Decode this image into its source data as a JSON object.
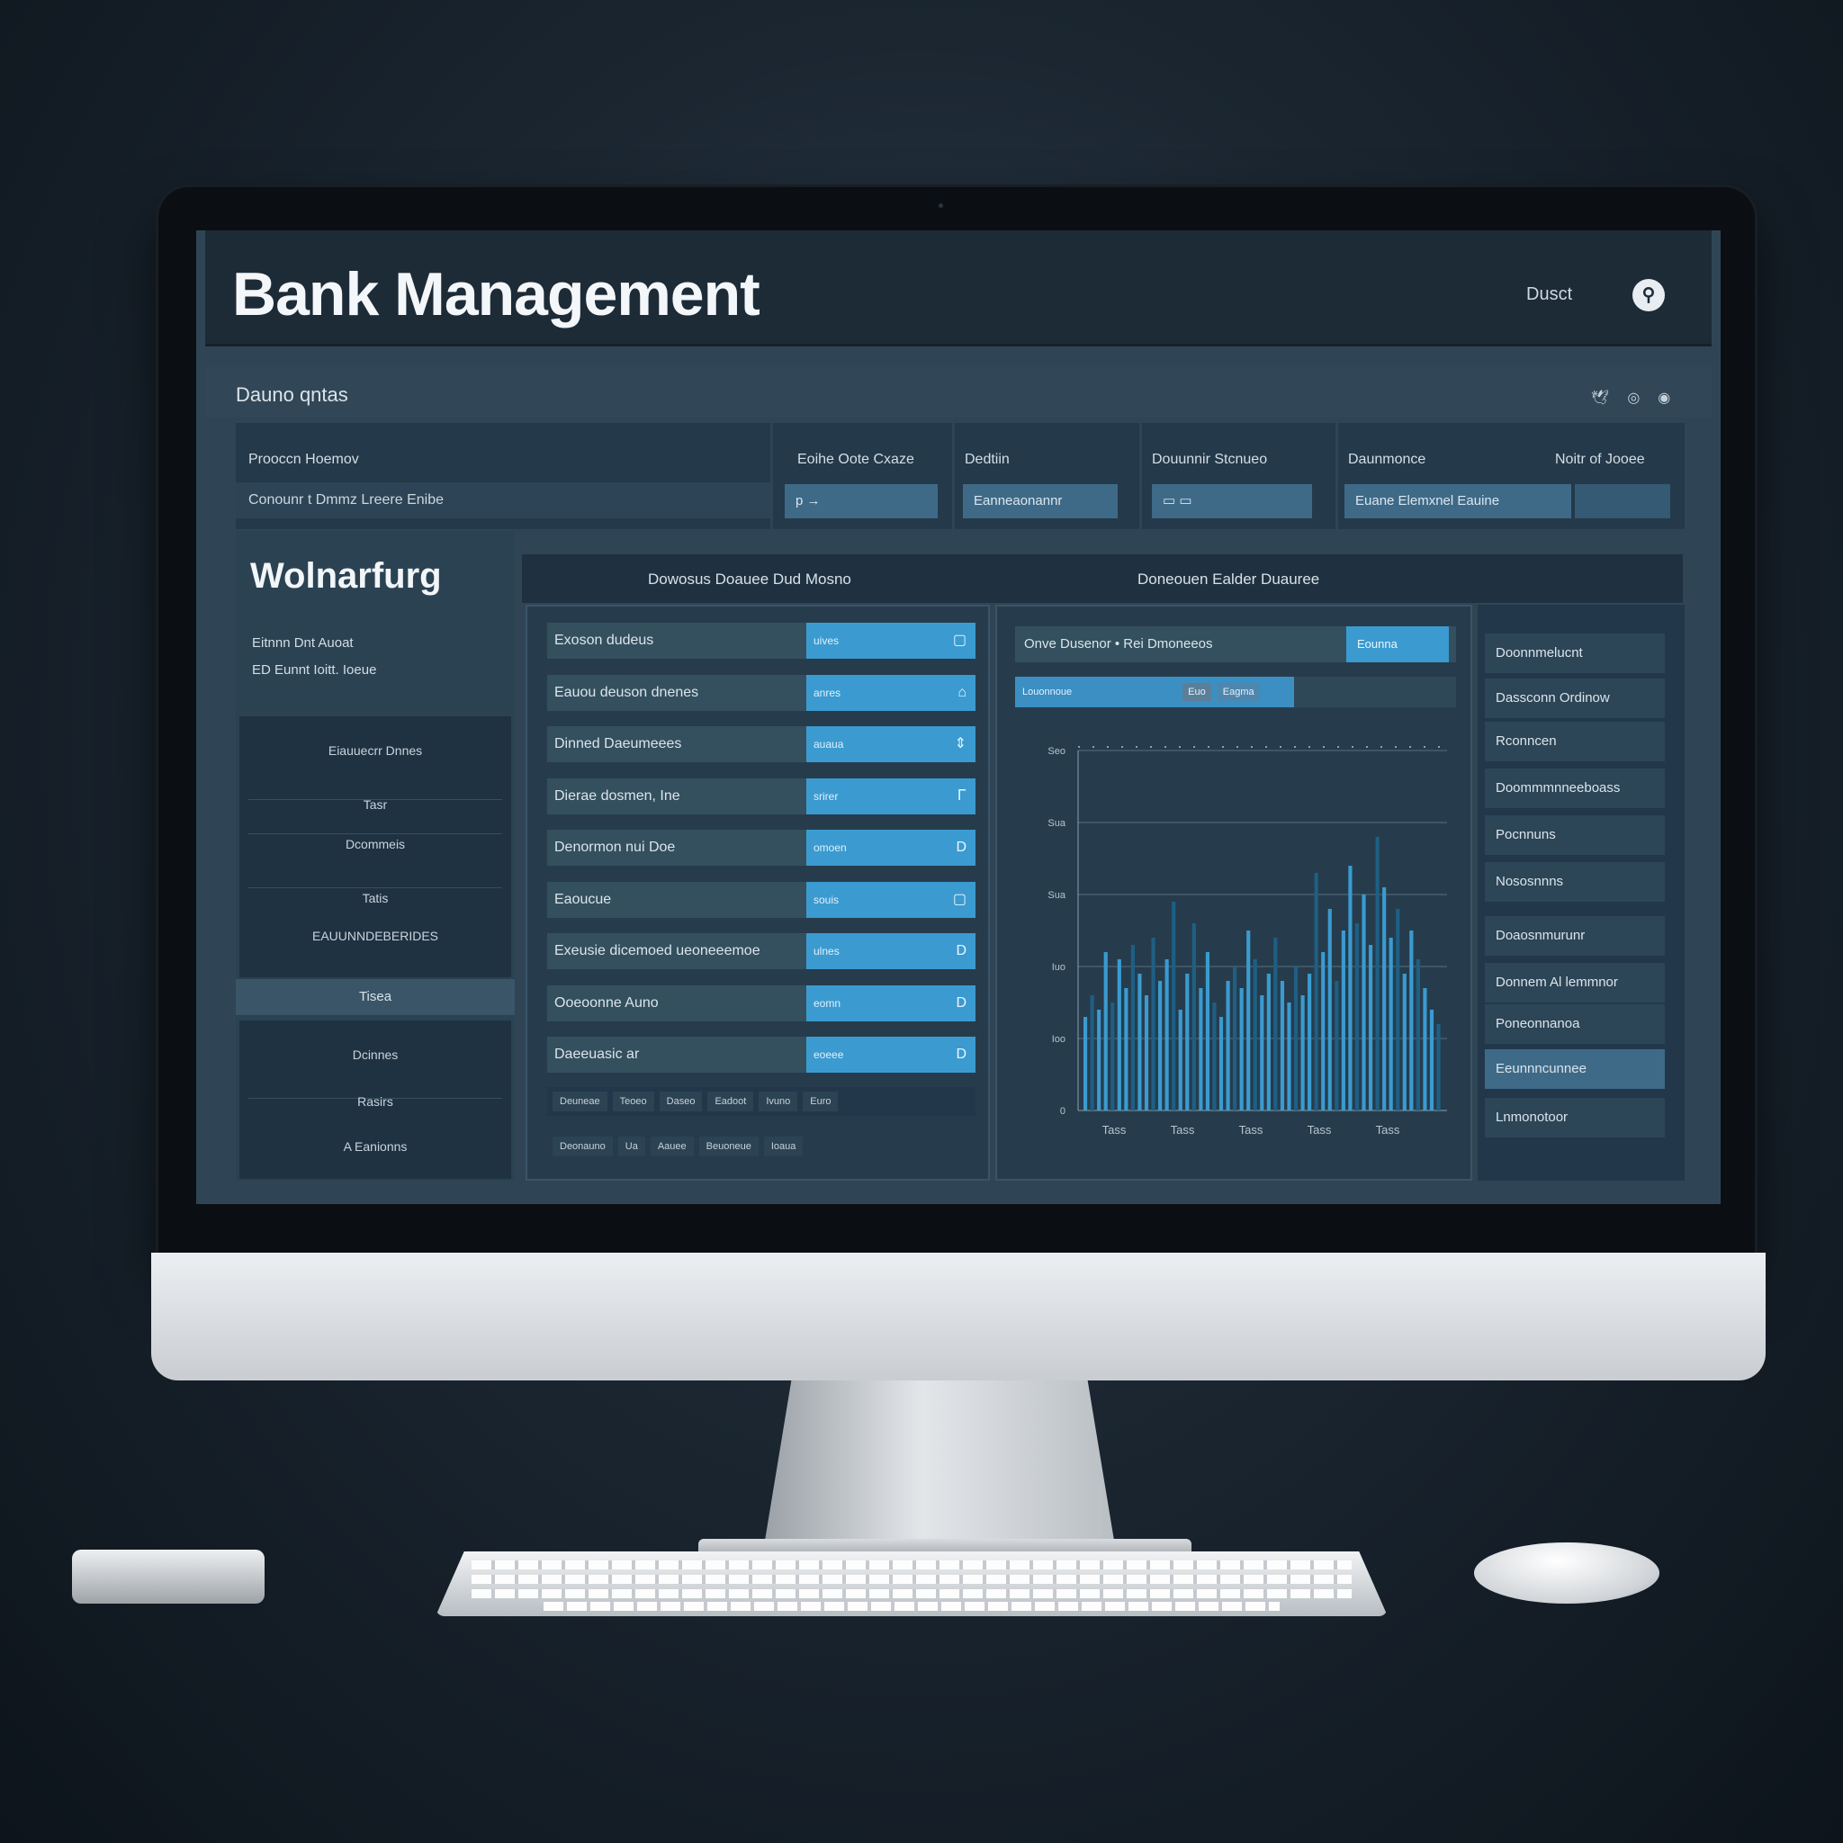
{
  "header": {
    "title": "Bank Management",
    "user_label": "Dusct",
    "avatar_glyph": "⚲"
  },
  "subbar": {
    "title": "Dauno qntas",
    "icons": [
      "bird-icon",
      "help-icon",
      "camera-icon"
    ]
  },
  "filters": [
    {
      "label": "Prooccn Hoemov",
      "value": "Conounr t Dmmz Lreere Enibe"
    },
    {
      "label": "Eoihe Oote Cxaze",
      "box": "p  →"
    },
    {
      "label": "Dedtiin",
      "box": "Eanneaonannr"
    },
    {
      "label": "Douunnir Stcnueo",
      "box": "▭   ▭"
    },
    {
      "label": "Daunmonce",
      "label2": "Noitr of Jooee",
      "box": "Euane  Elemxnel Eauine"
    }
  ],
  "left_panel": {
    "title": "Wolnarfurg",
    "subtitle_lines": [
      "Eitnnn Dnt Auoat",
      "ED Eunnt Ioitt. Ioeue"
    ],
    "block1_items": [
      "Eiauuecrr Dnnes",
      "Tasr",
      "Dcommeis",
      "Tatis",
      "EAUUNNDEBERIDES"
    ],
    "tab_label": "Tisea",
    "block2_items": [
      "Dcinnes",
      "Rasirs",
      "A Eanionns"
    ]
  },
  "table_panel": {
    "header_left": "Dowosus Doauee Dud Mosno",
    "header_right": "Doneouen Ealder Duauree",
    "rows": [
      {
        "label": "Exoson dudeus",
        "value": "uives",
        "icon": "▢"
      },
      {
        "label": "Eauou deuson dnenes",
        "value": "anres",
        "icon": "⌂"
      },
      {
        "label": "Dinned Daeumeees",
        "value": "auaua",
        "icon": "⇕"
      },
      {
        "label": "Dierae dosmen, Ine",
        "value": "srirer",
        "icon": "Ꮁ"
      },
      {
        "label": "Denormon nui Doe",
        "value": "omoen",
        "icon": "D"
      },
      {
        "label": "Eaoucue",
        "value": "souis",
        "icon": "▢"
      },
      {
        "label": "Exeusie dicemoed  ueoneeemoe",
        "value": "ulnes",
        "icon": "D"
      },
      {
        "label": "Ooeoonne Auno",
        "value": "eomn",
        "icon": "D"
      },
      {
        "label": "Daeeuasic ar",
        "value": "eoeee",
        "icon": "D"
      }
    ],
    "footer1": [
      "Deuneae",
      "Teoeo",
      "Daseo",
      "Eadoot",
      "Ivuno",
      "Euro"
    ],
    "footer2": [
      "Deonauno",
      "Ua",
      "Aauee",
      "Beuoneue",
      "Ioaua"
    ]
  },
  "chart_panel": {
    "top_label": "Onve Dusenor  • Rei Dmoneeos",
    "top_button": "Eounna",
    "sub_label": "Louonnoue",
    "sub_chip": "Euo",
    "sub_chip2": "Eagma"
  },
  "chart_data": {
    "type": "bar",
    "title": "",
    "ylim": [
      0,
      5
    ],
    "y_ticks": [
      "0",
      "Ioo",
      "Iuo",
      "Sua",
      "Sua",
      "Seo"
    ],
    "x_ticks": [
      "Tass",
      "Tass",
      "Tass",
      "Tass",
      "Tass"
    ],
    "values": [
      1.3,
      1.6,
      1.4,
      2.2,
      1.5,
      2.1,
      1.7,
      2.3,
      1.9,
      1.6,
      2.4,
      1.8,
      2.1,
      2.9,
      1.4,
      1.9,
      2.6,
      1.7,
      2.2,
      1.5,
      1.3,
      1.8,
      2.0,
      1.7,
      2.5,
      2.1,
      1.6,
      1.9,
      2.4,
      1.8,
      1.5,
      2.0,
      1.6,
      1.9,
      3.3,
      2.2,
      2.8,
      1.8,
      2.5,
      3.4,
      2.6,
      3.0,
      2.3,
      3.8,
      3.1,
      2.4,
      2.8,
      1.9,
      2.5,
      2.1,
      1.7,
      1.4,
      1.2
    ],
    "grid": true,
    "colors": {
      "bar": "#3a9bd0",
      "bar_dark": "#1e5f84"
    }
  },
  "right_menu": {
    "items": [
      {
        "label": "Doonnmelucnt",
        "active": false
      },
      {
        "label": "Dassconn Ordinow",
        "active": false
      },
      {
        "label": "Rconncen",
        "active": false
      },
      {
        "label": "Doommmnneeboass",
        "active": false
      },
      {
        "label": "Pocnnuns",
        "active": false
      },
      {
        "label": "Nososnnns",
        "active": false
      },
      {
        "label": "Doaosnmurunr",
        "active": false
      },
      {
        "label": "Donnem Al lemmnor",
        "active": false
      },
      {
        "label": "Poneonnanoa",
        "active": false
      },
      {
        "label": "Eeunnncunnee",
        "active": true
      },
      {
        "label": "Lnmonotoor",
        "active": false
      }
    ]
  },
  "colors": {
    "accent": "#3b9bd0",
    "header_bg": "#1d2b37",
    "screen_bg": "#2f4555"
  }
}
